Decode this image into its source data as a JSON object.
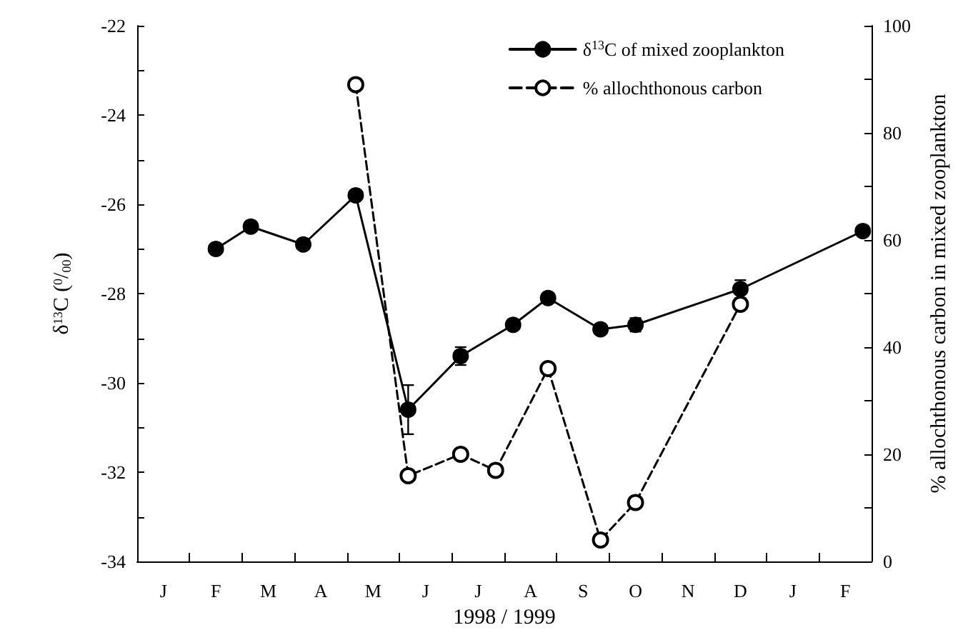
{
  "chart_data": {
    "type": "line",
    "xlabel": "1998 / 1999",
    "ylabel": "δ$^{13}$C ($^{0}$/$_{00}$)",
    "y2label": "% allochthonous carbon in mixed zooplankton",
    "categories": [
      null,
      "J",
      null,
      null,
      "F",
      null,
      null,
      "M",
      null,
      null,
      "A",
      null,
      null,
      "M",
      null,
      null,
      "J",
      null,
      null,
      "J",
      null,
      null,
      "A",
      null,
      null,
      "S",
      null,
      null,
      "O",
      null,
      null,
      "N",
      null,
      null,
      "D",
      null,
      null,
      "J",
      null,
      null,
      "F",
      null
    ],
    "ylim": [
      -34,
      -22
    ],
    "yticks": [
      -34,
      {
        "value": -33,
        "label": null
      },
      -32,
      {
        "value": -31,
        "label": null
      },
      -30,
      {
        "value": -29,
        "label": null
      },
      -28,
      {
        "value": -27,
        "label": null
      },
      -26,
      {
        "value": -25,
        "label": null
      },
      -24,
      {
        "value": -23,
        "label": null
      },
      -22
    ],
    "y2lim": [
      0,
      100
    ],
    "y2ticks": [
      0,
      {
        "value": 10,
        "label": null
      },
      20,
      {
        "value": 30,
        "label": null
      },
      40,
      {
        "value": 50,
        "label": null
      },
      60,
      {
        "value": 70,
        "label": null
      },
      80,
      {
        "value": 90,
        "label": null
      },
      100
    ],
    "grid": false,
    "legend": "top right",
    "series": [
      {
        "name": "δ$^{13}$C of mixed zooplankton",
        "color": "#000000",
        "marker": "circle",
        "line_style": "solid",
        "values": [
          null,
          null,
          null,
          null,
          -27.0,
          null,
          -26.5,
          null,
          null,
          -26.9,
          null,
          null,
          -25.8,
          null,
          null,
          -30.6,
          null,
          null,
          -29.4,
          null,
          null,
          -28.7,
          null,
          -28.1,
          null,
          null,
          -28.8,
          null,
          -28.7,
          null,
          null,
          null,
          null,
          null,
          -27.9,
          null,
          null,
          null,
          null,
          null,
          null,
          -26.6
        ],
        "errors": [
          null,
          null,
          null,
          null,
          null,
          null,
          null,
          null,
          null,
          null,
          null,
          null,
          null,
          null,
          null,
          0.55,
          null,
          null,
          0.2,
          null,
          null,
          null,
          null,
          null,
          null,
          null,
          null,
          null,
          0.15,
          null,
          null,
          null,
          null,
          null,
          0.2,
          null,
          null,
          null,
          null,
          null,
          null,
          null
        ]
      },
      {
        "name": "% allochthonous carbon",
        "color": "#000000",
        "marker": "circle",
        "line_style": "dashed",
        "axis": "y2",
        "values": [
          null,
          null,
          null,
          null,
          null,
          null,
          null,
          null,
          null,
          null,
          null,
          null,
          89,
          null,
          null,
          16,
          null,
          null,
          20,
          null,
          17,
          null,
          null,
          36,
          null,
          null,
          4,
          null,
          11,
          null,
          null,
          null,
          null,
          null,
          48,
          null,
          null,
          null,
          null,
          null,
          null,
          null
        ]
      }
    ]
  }
}
